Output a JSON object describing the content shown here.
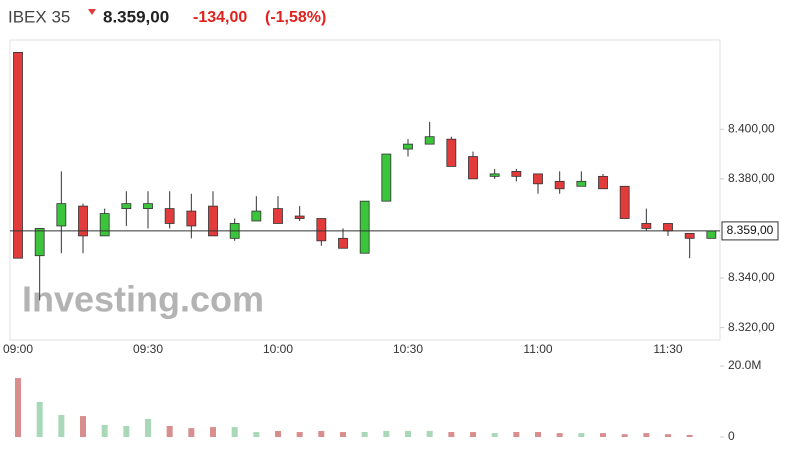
{
  "quote": {
    "name": "IBEX 35",
    "price": "8.359,00",
    "change": "-134,00",
    "change_pct": "(-1,58%)"
  },
  "chart_data": {
    "type": "candlestick",
    "watermark": "Investing.com",
    "categories": [
      "09:00",
      null,
      null,
      null,
      null,
      null,
      "09:30",
      null,
      null,
      null,
      null,
      null,
      "10:00",
      null,
      null,
      null,
      null,
      null,
      "10:30",
      null,
      null,
      null,
      null,
      null,
      "11:00",
      null,
      null,
      null,
      null,
      null,
      "11:30",
      null,
      null
    ],
    "open": [
      8431,
      8349,
      8361,
      8369,
      8357,
      8368,
      8368,
      8368,
      8367,
      8369,
      8356,
      8363,
      8368,
      8365,
      8364,
      8356,
      8350,
      8371,
      8392,
      8394,
      8396,
      8389,
      8381,
      8383,
      8382,
      8379,
      8377,
      8381,
      8377,
      8362,
      8362,
      8358,
      8356
    ],
    "high": [
      8431,
      8360,
      8383,
      8370,
      8368,
      8375,
      8375,
      8375,
      8374,
      8375,
      8364,
      8373,
      8373,
      8369,
      8364,
      8360,
      8371,
      8390,
      8396,
      8403,
      8397,
      8391,
      8384,
      8384,
      8382,
      8383,
      8383,
      8382,
      8377,
      8368,
      8362,
      8358,
      8359
    ],
    "low": [
      8348,
      8331,
      8350,
      8350,
      8357,
      8361,
      8360,
      8360,
      8356,
      8357,
      8355,
      8363,
      8362,
      8363,
      8353,
      8352,
      8350,
      8371,
      8389,
      8394,
      8385,
      8380,
      8380,
      8379,
      8374,
      8374,
      8377,
      8376,
      8364,
      8359,
      8357,
      8348,
      8356
    ],
    "close": [
      8348,
      8360,
      8370,
      8357,
      8366,
      8370,
      8370,
      8362,
      8361,
      8357,
      8362,
      8367,
      8362,
      8364,
      8355,
      8352,
      8371,
      8390,
      8394,
      8397,
      8385,
      8380,
      8382,
      8381,
      8378,
      8376,
      8379,
      8376,
      8364,
      8360,
      8359,
      8356,
      8359
    ],
    "volume": [
      16600000,
      9900000,
      6200000,
      5900000,
      3400000,
      3100000,
      5100000,
      3100000,
      2500000,
      2800000,
      2800000,
      1400000,
      1700000,
      1400000,
      1700000,
      1400000,
      1400000,
      1700000,
      1700000,
      1700000,
      1400000,
      1400000,
      1100000,
      1400000,
      1400000,
      1100000,
      1100000,
      1100000,
      800000,
      1100000,
      800000,
      600000,
      0
    ],
    "up_color": "#3cc43c",
    "down_color": "#e23b3b",
    "volume_up_color": "#a8d8b8",
    "volume_down_color": "#d88e8e",
    "ylim": [
      8315,
      8436
    ],
    "yticks": [
      {
        "value": 8320,
        "label": "8.320,00"
      },
      {
        "value": 8340,
        "label": "8.340,00"
      },
      {
        "value": 8380,
        "label": "8.380,00"
      },
      {
        "value": 8400,
        "label": "8.400,00"
      }
    ],
    "y2lim": [
      0,
      20000000
    ],
    "y2ticks": [
      0,
      {
        "value": 20000000,
        "label": "20.0M"
      }
    ],
    "last": {
      "value": 8359,
      "label": "8.359,00"
    }
  }
}
